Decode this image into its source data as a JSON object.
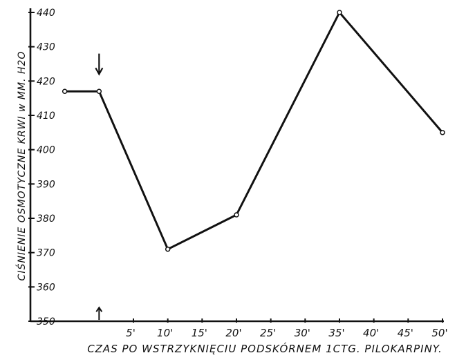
{
  "chart_data": {
    "type": "line",
    "title": "",
    "ylabel": "CIŚNIENIE OSMOTYCZNE KRWI w MM. H2O",
    "xlabel": "CZAS PO WSTRZYKNIĘCIU PODSKÓRNEM 1CTG. PILOKARPINY.",
    "y_ticks": [
      350,
      360,
      370,
      380,
      390,
      400,
      410,
      420,
      430,
      440
    ],
    "y_tick_labels": [
      "350",
      "360",
      "370",
      "380",
      "390",
      "400",
      "410",
      "420",
      "430",
      "440"
    ],
    "x_tick_labels": [
      "5'",
      "10'",
      "15'",
      "20'",
      "25'",
      "30'",
      "35'",
      "40'",
      "45'",
      "50'"
    ],
    "ylim": [
      350,
      440
    ],
    "xlim": [
      -10,
      50
    ],
    "grid": false,
    "series": [
      {
        "x": [
          -5,
          0,
          10,
          20,
          35,
          50
        ],
        "y": [
          417,
          417,
          371,
          381,
          440,
          405
        ]
      }
    ],
    "annotations": {
      "injection_arrow_down": {
        "x": 0,
        "y_from": 428,
        "y_to": 422
      },
      "injection_arrow_up": {
        "x": 0,
        "y_from": 350,
        "y_to": 354
      }
    }
  }
}
